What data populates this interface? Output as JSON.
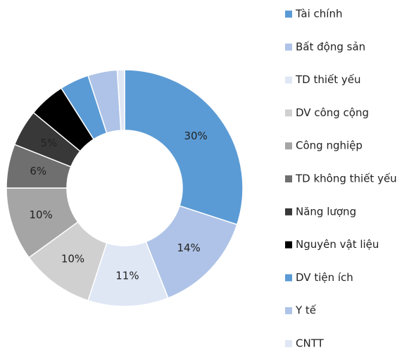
{
  "chart_data": {
    "type": "pie",
    "categories": [
      "Tài chính",
      "Bất động sản",
      "TD thiết yếu",
      "DV công cộng",
      "Công nghiệp",
      "TD không thiết yếu",
      "Năng lượng",
      "Nguyên vật liệu",
      "DV tiện ích",
      "Y tế",
      "CNTT"
    ],
    "values": [
      30,
      14,
      11,
      10,
      10,
      6,
      5,
      5,
      4,
      4,
      1
    ],
    "value_labels": [
      "30%",
      "14%",
      "11%",
      "10%",
      "10%",
      "6%",
      "5%",
      null,
      null,
      null,
      null
    ],
    "colors": [
      "#5b9bd5",
      "#aec3e7",
      "#dfe7f5",
      "#d0d0d0",
      "#a5a5a5",
      "#6f6f6f",
      "#383838",
      "#000000",
      "#5b9bd5",
      "#aec3e7",
      "#dfe7f5"
    ],
    "legend": "right"
  }
}
